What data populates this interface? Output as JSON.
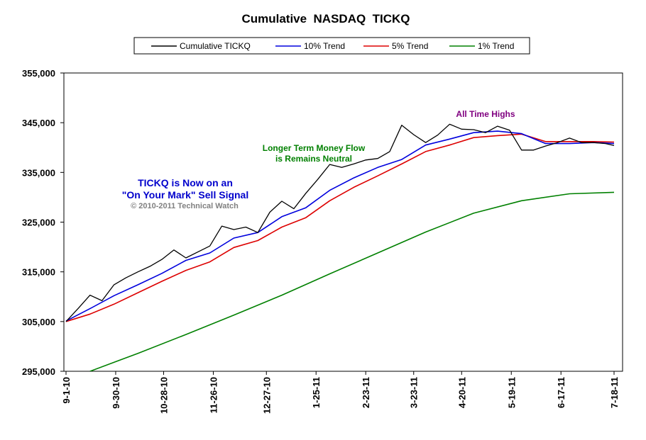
{
  "chart_data": {
    "type": "line",
    "title": "Cumulative  NASDAQ  TICKQ",
    "ylim": [
      295000,
      355000
    ],
    "y_ticks": [
      "295,000",
      "305,000",
      "315,000",
      "325,000",
      "335,000",
      "345,000",
      "355,000"
    ],
    "y_tick_values": [
      295000,
      305000,
      315000,
      325000,
      335000,
      345000,
      355000
    ],
    "x_ticks": [
      "9-1-10",
      "9-30-10",
      "10-28-10",
      "11-26-10",
      "12-27-10",
      "1-25-11",
      "2-23-11",
      "3-23-11",
      "4-20-11",
      "5-19-11",
      "6-17-11",
      "7-18-11"
    ],
    "x_tick_dates": [
      "2010-09-01",
      "2010-09-30",
      "2010-10-28",
      "2010-11-26",
      "2010-12-27",
      "2011-01-25",
      "2011-02-23",
      "2011-03-23",
      "2011-04-20",
      "2011-05-19",
      "2011-06-17",
      "2011-07-18"
    ],
    "grid": false,
    "legend_position": "top",
    "series": [
      {
        "name": "Cumulative TICKQ",
        "color": "#000000",
        "x": [
          "2010-09-01",
          "2010-09-08",
          "2010-09-15",
          "2010-09-22",
          "2010-09-29",
          "2010-10-06",
          "2010-10-13",
          "2010-10-20",
          "2010-10-27",
          "2010-11-03",
          "2010-11-10",
          "2010-11-17",
          "2010-11-24",
          "2010-12-01",
          "2010-12-08",
          "2010-12-15",
          "2010-12-22",
          "2010-12-29",
          "2011-01-05",
          "2011-01-12",
          "2011-01-19",
          "2011-01-26",
          "2011-02-02",
          "2011-02-09",
          "2011-02-16",
          "2011-02-23",
          "2011-03-02",
          "2011-03-09",
          "2011-03-16",
          "2011-03-23",
          "2011-03-30",
          "2011-04-06",
          "2011-04-13",
          "2011-04-20",
          "2011-04-27",
          "2011-05-04",
          "2011-05-11",
          "2011-05-18",
          "2011-05-25",
          "2011-06-01",
          "2011-06-08",
          "2011-06-15",
          "2011-06-22",
          "2011-06-29",
          "2011-07-06",
          "2011-07-13",
          "2011-07-18"
        ],
        "values": [
          305000,
          307600,
          310300,
          309200,
          312400,
          313800,
          315000,
          316100,
          317500,
          319400,
          317800,
          319000,
          320200,
          324200,
          323500,
          324000,
          322900,
          327000,
          329200,
          327700,
          330800,
          333600,
          336600,
          336000,
          336700,
          337500,
          337800,
          339200,
          344500,
          342600,
          341000,
          342500,
          344700,
          343700,
          343600,
          343000,
          344300,
          343500,
          339500,
          339500,
          340300,
          341000,
          341900,
          341000,
          341000,
          340800,
          340400
        ]
      },
      {
        "name": "10% Trend",
        "color": "#0000dd",
        "x": [
          "2010-09-01",
          "2010-09-15",
          "2010-09-29",
          "2010-10-13",
          "2010-10-27",
          "2010-11-10",
          "2010-11-24",
          "2010-12-08",
          "2010-12-22",
          "2011-01-05",
          "2011-01-19",
          "2011-02-02",
          "2011-02-16",
          "2011-03-02",
          "2011-03-16",
          "2011-03-30",
          "2011-04-13",
          "2011-04-27",
          "2011-05-11",
          "2011-05-25",
          "2011-06-08",
          "2011-06-22",
          "2011-07-06",
          "2011-07-18"
        ],
        "values": [
          305100,
          307600,
          310200,
          312400,
          314700,
          317300,
          318800,
          321800,
          322900,
          326100,
          327900,
          331400,
          333900,
          336000,
          337600,
          340500,
          341700,
          343000,
          343300,
          342800,
          340800,
          340800,
          341000,
          340800
        ]
      },
      {
        "name": "5% Trend",
        "color": "#dd0000",
        "x": [
          "2010-09-01",
          "2010-09-15",
          "2010-09-29",
          "2010-10-13",
          "2010-10-27",
          "2010-11-10",
          "2010-11-24",
          "2010-12-08",
          "2010-12-22",
          "2011-01-05",
          "2011-01-19",
          "2011-02-02",
          "2011-02-16",
          "2011-03-02",
          "2011-03-16",
          "2011-03-30",
          "2011-04-13",
          "2011-04-27",
          "2011-05-11",
          "2011-05-25",
          "2011-06-08",
          "2011-06-22",
          "2011-07-06",
          "2011-07-18"
        ],
        "values": [
          305000,
          306500,
          308500,
          310800,
          313100,
          315300,
          317000,
          319900,
          321300,
          324000,
          325900,
          329300,
          332000,
          334300,
          336700,
          339200,
          340500,
          342000,
          342400,
          342700,
          341200,
          341200,
          341200,
          341100
        ]
      },
      {
        "name": "1% Trend",
        "color": "#008000",
        "x": [
          "2010-09-15",
          "2010-10-13",
          "2010-11-10",
          "2010-12-08",
          "2011-01-05",
          "2011-02-02",
          "2011-03-02",
          "2011-03-30",
          "2011-04-27",
          "2011-05-25",
          "2011-06-22",
          "2011-07-18"
        ],
        "values": [
          295000,
          298600,
          302400,
          306300,
          310300,
          314600,
          318800,
          323000,
          326800,
          329300,
          330700,
          331000
        ]
      }
    ],
    "annotations": [
      {
        "lines": [
          "All Time Highs"
        ],
        "color": "#800080"
      },
      {
        "lines": [
          "Longer Term Money Flow",
          "is Remains Neutral"
        ],
        "color": "#008000"
      },
      {
        "lines": [
          "TICKQ is Now on an",
          "\"On Your Mark\" Sell Signal"
        ],
        "color": "#0000cc"
      },
      {
        "lines": [
          "© 2010-2011 Technical Watch"
        ],
        "color": "#808080"
      }
    ]
  }
}
